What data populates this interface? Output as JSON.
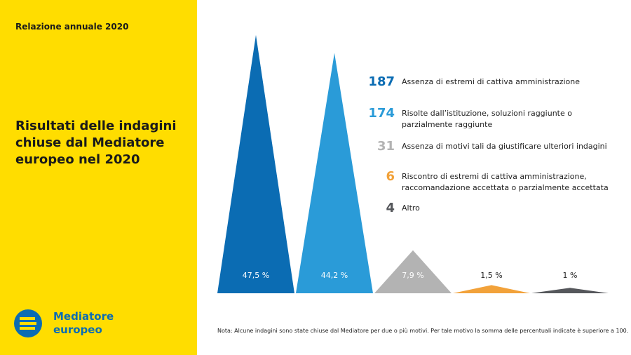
{
  "header": "Relazione annuale 2020",
  "brand": "Mediatore europeo",
  "chart_data": {
    "type": "triangle",
    "title": "Risultati delle indagini chiuse dal Mediatore europeo nel 2020",
    "categories": [
      "Assenza di estremi di cattiva amministrazione",
      "Risolte dall’istituzione, soluzioni raggiunte o parzialmente raggiunte",
      "Assenza di motivi tali da giustificare ulteriori indagini",
      "Riscontro di estremi di cattiva amministrazione, raccomandazione accettata o parzialmente accettata",
      "Altro"
    ],
    "counts": [
      187,
      174,
      31,
      6,
      4
    ],
    "values": [
      47.5,
      44.2,
      7.9,
      1.5,
      1
    ],
    "value_labels": [
      "47,5 %",
      "44,2 %",
      "7,9 %",
      "1,5 %",
      "1 %"
    ],
    "colors": [
      "#0b6cb3",
      "#2a9bd8",
      "#b3b3b3",
      "#f2a23a",
      "#55575b"
    ],
    "note": "Nota: Alcune indagini sono state chiuse dal Mediatore per due o più motivi. Per tale motivo la somma delle percentuali indicate è superiore a 100."
  }
}
